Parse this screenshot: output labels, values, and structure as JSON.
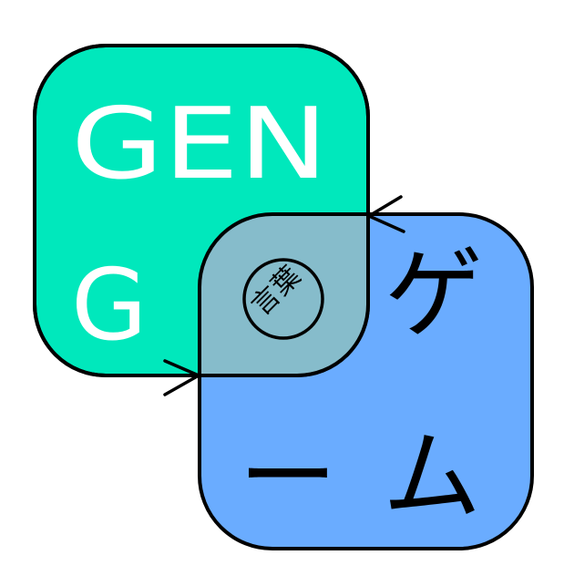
{
  "logo": {
    "green_line1": "GEN",
    "green_line2": "G",
    "blue_char1": "ゲ",
    "blue_char2": "ー",
    "blue_char3": "ム",
    "seal_char1": "言",
    "seal_char2": "葉"
  },
  "colors": {
    "green": "#00e8bc",
    "blue": "#6aacff",
    "overlap": "#86bccb",
    "outline": "#000000",
    "text_on_green": "#ffffff"
  }
}
